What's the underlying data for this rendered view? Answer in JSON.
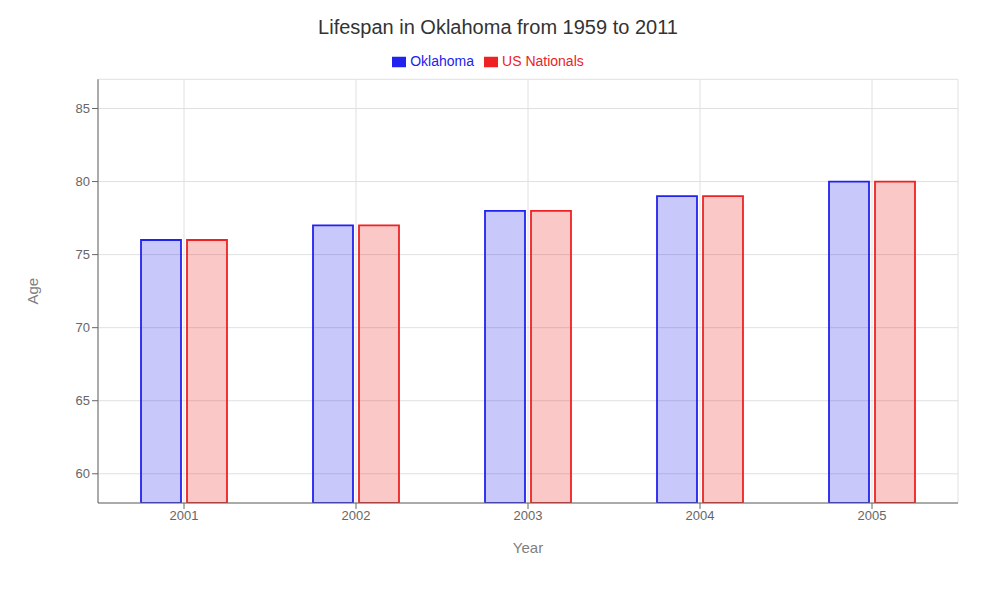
{
  "chart_data": {
    "type": "bar",
    "title": "Lifespan in Oklahoma from 1959 to 2011",
    "x_label": "Year",
    "y_label": "Age",
    "categories": [
      "2001",
      "2002",
      "2003",
      "2004",
      "2005"
    ],
    "series": [
      {
        "name": "Oklahoma",
        "color": "#2222ee",
        "values": [
          76,
          77,
          78,
          79,
          80
        ]
      },
      {
        "name": "US Nationals",
        "color": "#ee2222",
        "values": [
          76,
          77,
          78,
          79,
          80
        ]
      }
    ],
    "ylim": [
      58,
      87
    ],
    "yticks": [
      60,
      65,
      70,
      75,
      80,
      85
    ],
    "grid": true,
    "legend": "top"
  }
}
